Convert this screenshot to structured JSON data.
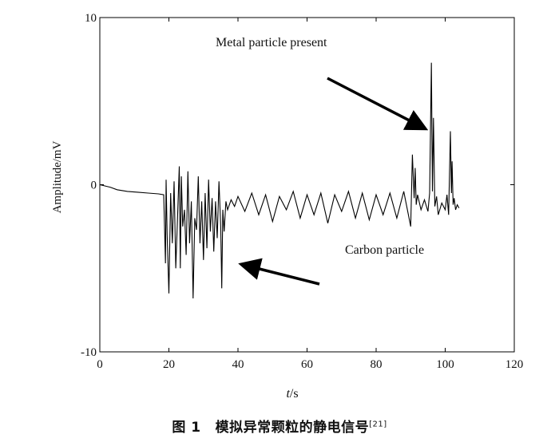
{
  "chart_data": {
    "type": "line",
    "title": "",
    "xlabel_var": "t",
    "xlabel_unit": "/s",
    "ylabel": "Amplitude/mV",
    "xlim": [
      0,
      120
    ],
    "ylim": [
      -10,
      10
    ],
    "xticks": [
      0,
      20,
      40,
      60,
      80,
      100,
      120
    ],
    "yticks": [
      -10,
      0,
      10
    ],
    "xtick_labels": [
      "0",
      "20",
      "40",
      "60",
      "80",
      "100",
      "120"
    ],
    "ytick_labels": [
      "-10",
      "0",
      "10"
    ],
    "grid": false,
    "series": [
      {
        "color": "#000000",
        "x": [
          0,
          2,
          3,
          5,
          8,
          11,
          14,
          17,
          18.5,
          19,
          19.2,
          19.5,
          20,
          20.5,
          21,
          21.5,
          22,
          22.5,
          23,
          23.3,
          23.6,
          24,
          24.5,
          25,
          25.5,
          26,
          26.5,
          27,
          27.5,
          28,
          28.5,
          29,
          29.5,
          30,
          30.5,
          31,
          31.5,
          32,
          32.5,
          33,
          33.5,
          34,
          34.5,
          35,
          35.3,
          35.6,
          36,
          36.5,
          37,
          38,
          39,
          40,
          42,
          44,
          46,
          48,
          50,
          52,
          54,
          56,
          58,
          60,
          62,
          64,
          66,
          68,
          70,
          72,
          74,
          76,
          78,
          80,
          82,
          84,
          86,
          88,
          90,
          90.5,
          91,
          91.3,
          91.6,
          92,
          93,
          94,
          95,
          95.5,
          96,
          96.3,
          96.6,
          97,
          97.5,
          98,
          99,
          100,
          100.5,
          101,
          101.5,
          101.8,
          102,
          102.3,
          102.6,
          103,
          103.5,
          104
        ],
        "y": [
          0,
          -0.1,
          -0.15,
          -0.3,
          -0.4,
          -0.45,
          -0.5,
          -0.55,
          -0.6,
          -4.7,
          0.3,
          -3,
          -6.5,
          -0.5,
          -3.5,
          0.2,
          -5,
          -2,
          1.1,
          -5,
          0.5,
          -2.5,
          -1.5,
          -4.2,
          0.8,
          -3.5,
          -1,
          -6.8,
          -2,
          -2.7,
          0.5,
          -3.5,
          -1,
          -4.5,
          -0.5,
          -3.8,
          0.3,
          -2.8,
          -0.8,
          -4,
          -1,
          -3.2,
          0.2,
          -2.5,
          -6.2,
          -1.5,
          -2.8,
          -1,
          -1.5,
          -0.9,
          -1.3,
          -0.7,
          -1.6,
          -0.5,
          -1.8,
          -0.6,
          -2.2,
          -0.7,
          -1.5,
          -0.4,
          -2,
          -0.6,
          -1.8,
          -0.5,
          -2.3,
          -0.6,
          -1.6,
          -0.4,
          -2,
          -0.5,
          -2.1,
          -0.6,
          -1.8,
          -0.5,
          -2,
          -0.4,
          -2.5,
          1.8,
          -0.8,
          1,
          -1.2,
          -0.6,
          -1.5,
          -0.9,
          -1.6,
          -0.5,
          7.3,
          -0.4,
          4,
          -1.3,
          -0.7,
          -1.8,
          -1.1,
          -1.5,
          -0.6,
          -1.8,
          3.2,
          -0.5,
          1.4,
          -1.2,
          -0.8,
          -1.5,
          -1.2,
          -1.4
        ]
      }
    ],
    "annotations": [
      {
        "text": "Metal particle present"
      },
      {
        "text": "Carbon particle"
      }
    ]
  },
  "caption": {
    "fig_num": "图 1",
    "text": "模拟异常颗粒的静电信号",
    "ref": "[21]"
  }
}
